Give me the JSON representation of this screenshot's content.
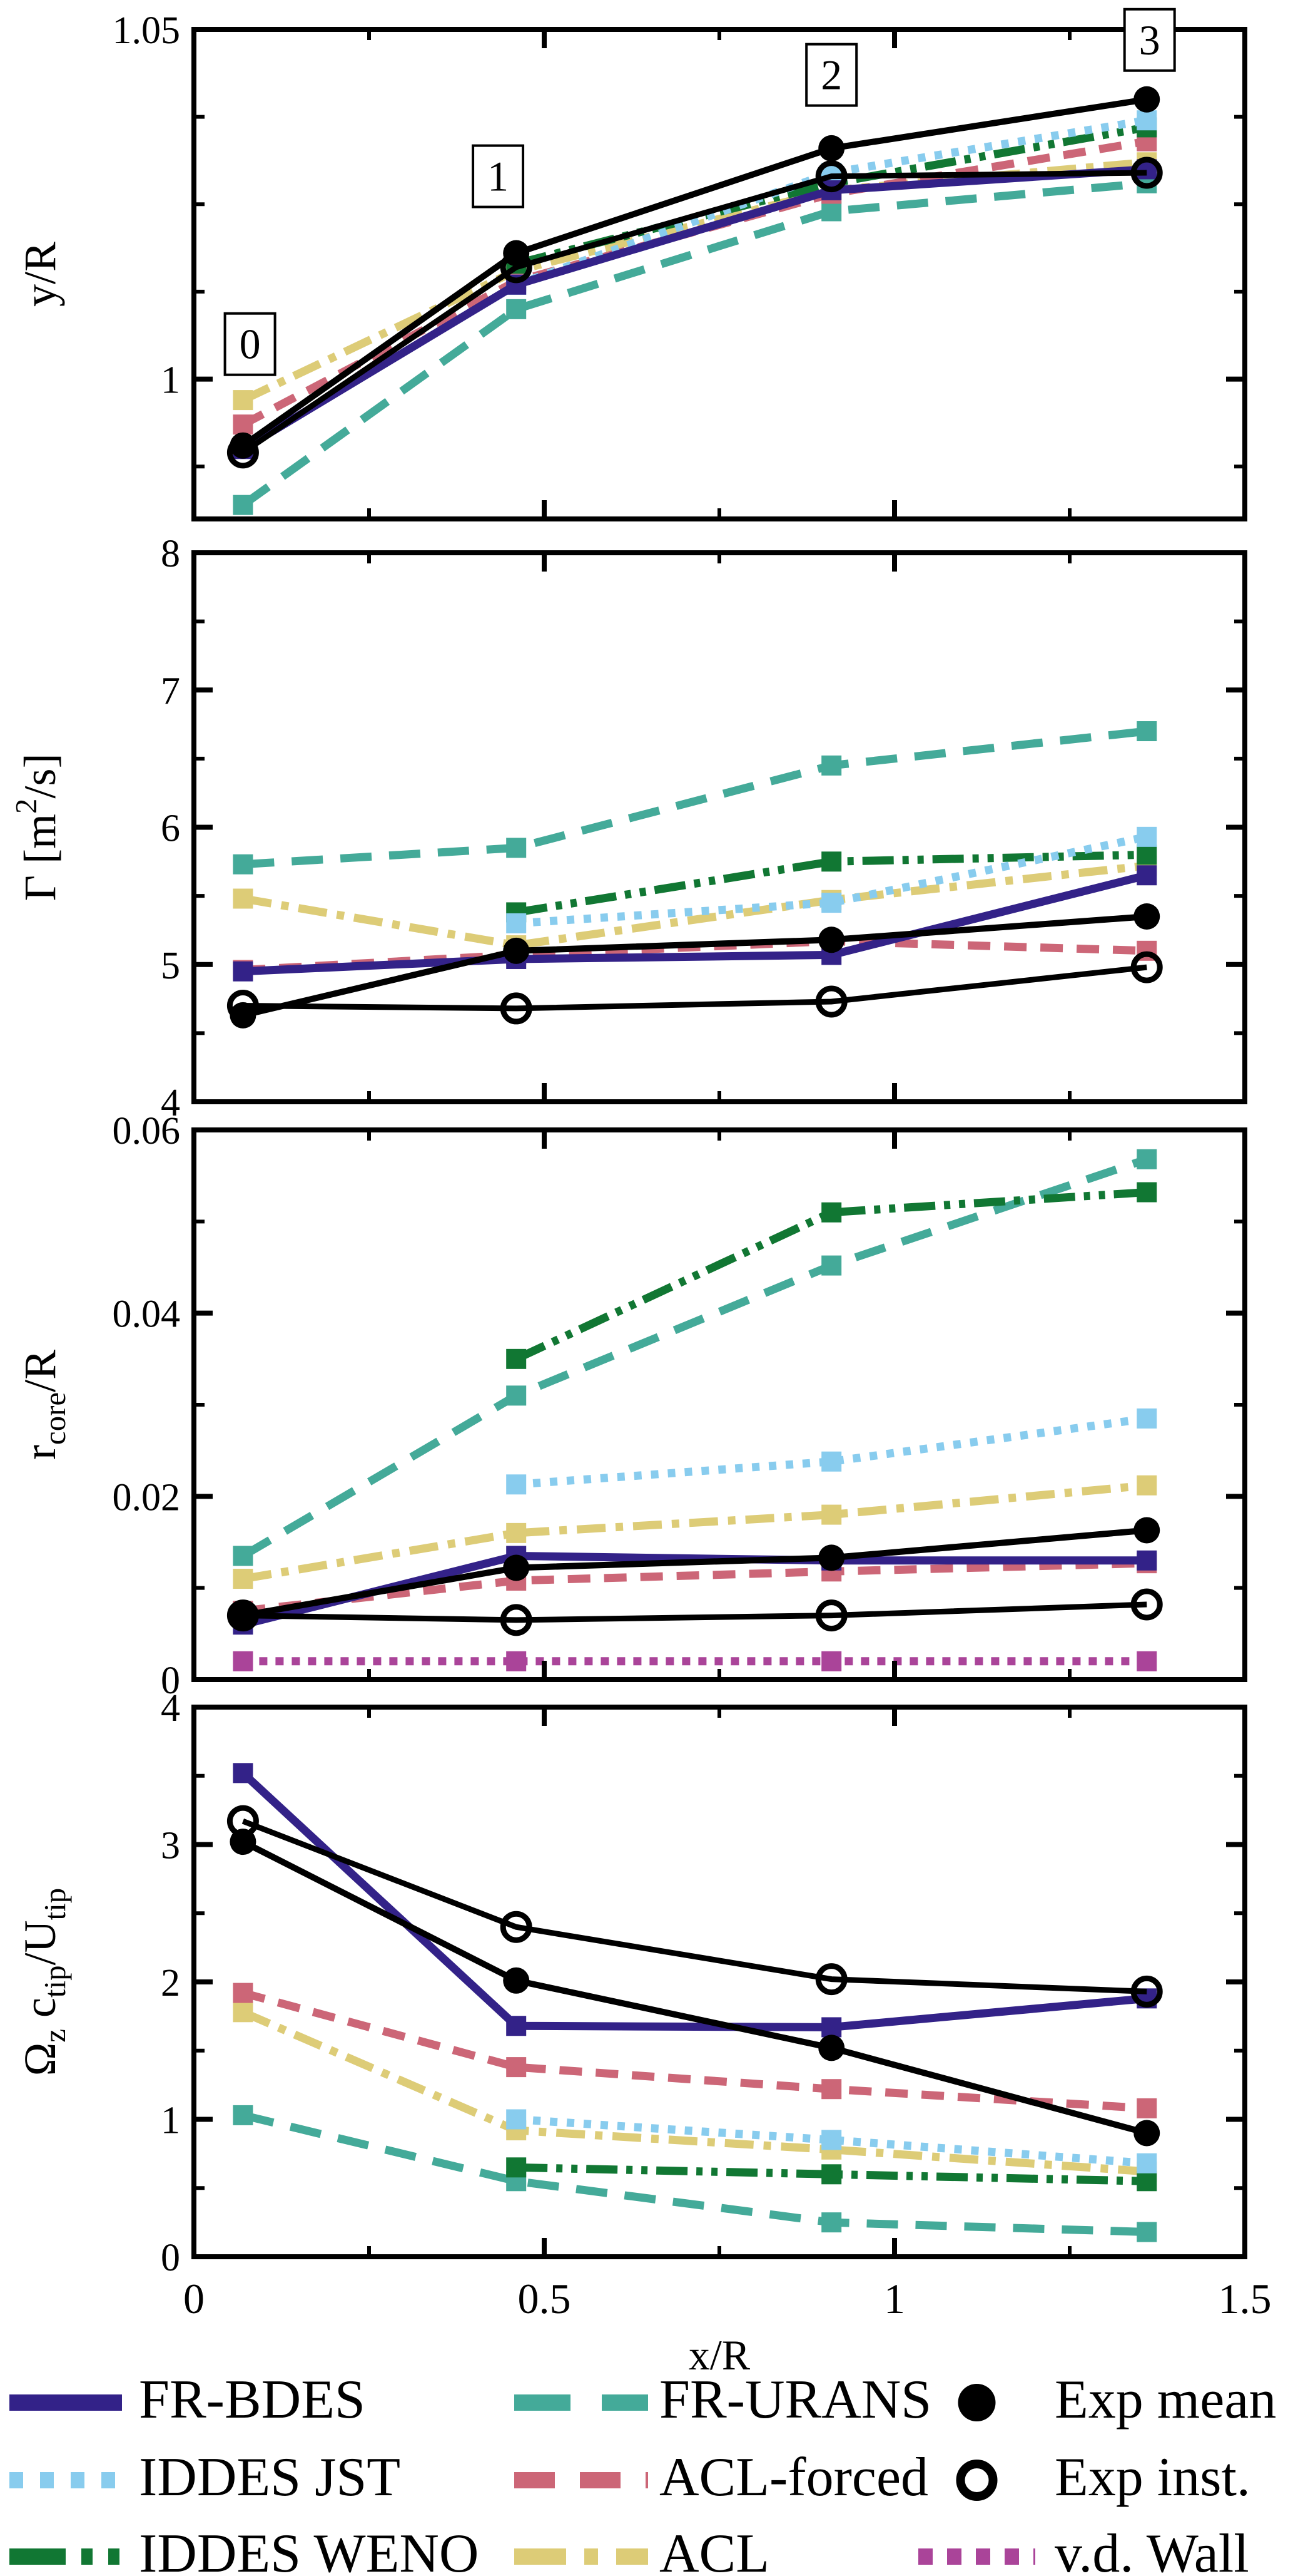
{
  "figure": {
    "background": "#ffffff",
    "xlabel": "x/R",
    "x_axis": {
      "range": [
        0,
        1.5
      ],
      "major_ticks": [
        0,
        0.5,
        1,
        1.5
      ],
      "major_labels": [
        "0",
        "0.5",
        "1",
        "1.5"
      ],
      "minor_ticks": [
        0.25,
        0.75,
        1.25
      ]
    }
  },
  "chart_data": {
    "type": "line",
    "x_stations": [
      0.07,
      0.46,
      0.91,
      1.36
    ],
    "panels": [
      {
        "id": "y-over-R",
        "ylabel_parts": [
          {
            "t": "y/R"
          }
        ],
        "ylim": [
          0.98,
          1.05
        ],
        "yticks": [
          {
            "v": 1,
            "label": "1"
          },
          {
            "v": 1.05,
            "label": "1.05"
          }
        ],
        "minor_yticks": [
          0.9875,
          1.0125,
          1.025,
          1.0375
        ],
        "annotations": [
          {
            "label": "0",
            "x": 0.08,
            "y": 1.005
          },
          {
            "label": "1",
            "x": 0.434,
            "y": 1.029
          },
          {
            "label": "2",
            "x": 0.91,
            "y": 1.0435
          },
          {
            "label": "3",
            "x": 1.364,
            "y": 1.0485
          }
        ]
      },
      {
        "id": "circulation",
        "ylabel_parts": [
          {
            "t": "Γ [m"
          },
          {
            "t": "2",
            "sup": true
          },
          {
            "t": "/s]"
          }
        ],
        "ylim": [
          4,
          8
        ],
        "yticks": [
          {
            "v": 4,
            "label": "4"
          },
          {
            "v": 5,
            "label": "5"
          },
          {
            "v": 6,
            "label": "6"
          },
          {
            "v": 7,
            "label": "7"
          },
          {
            "v": 8,
            "label": "8"
          }
        ],
        "minor_yticks": [
          4.5,
          5.5,
          6.5,
          7.5
        ],
        "annotations": []
      },
      {
        "id": "core-radius",
        "ylabel_parts": [
          {
            "t": "r"
          },
          {
            "t": "core",
            "sub": true
          },
          {
            "t": "/R"
          }
        ],
        "ylim": [
          0,
          0.06
        ],
        "yticks": [
          {
            "v": 0,
            "label": "0"
          },
          {
            "v": 0.02,
            "label": "0.02"
          },
          {
            "v": 0.04,
            "label": "0.04"
          },
          {
            "v": 0.06,
            "label": "0.06"
          }
        ],
        "minor_yticks": [
          0.01,
          0.03,
          0.05
        ],
        "annotations": []
      },
      {
        "id": "vorticity",
        "ylabel_parts": [
          {
            "t": "Ω"
          },
          {
            "t": "z",
            "sub": true
          },
          {
            "t": " c"
          },
          {
            "t": "tip",
            "sub": true
          },
          {
            "t": "/U"
          },
          {
            "t": "tip",
            "sub": true
          }
        ],
        "ylim": [
          0,
          4
        ],
        "yticks": [
          {
            "v": 0,
            "label": "0"
          },
          {
            "v": 1,
            "label": "1"
          },
          {
            "v": 2,
            "label": "2"
          },
          {
            "v": 3,
            "label": "3"
          },
          {
            "v": 4,
            "label": "4"
          }
        ],
        "minor_yticks": [
          0.5,
          1.5,
          2.5,
          3.5
        ],
        "annotations": []
      }
    ],
    "series": [
      {
        "id": "fr-urans",
        "label": "FR-URANS",
        "color": "#44AA99",
        "dash": "50 28",
        "lw": 13,
        "marker": "square",
        "values": {
          "y-over-R": [
            0.982,
            1.01,
            1.024,
            1.028
          ],
          "circulation": [
            5.73,
            5.85,
            6.45,
            6.7
          ],
          "core-radius": [
            0.0135,
            0.031,
            0.0452,
            0.0568
          ],
          "vorticity": [
            1.03,
            0.55,
            0.25,
            0.18
          ]
        }
      },
      {
        "id": "acl",
        "label": "ACL",
        "color": "#DDCC77",
        "dash": "46 16 12 16",
        "lw": 13,
        "marker": "square",
        "values": {
          "y-over-R": [
            0.997,
            1.0155,
            1.027,
            1.031
          ],
          "circulation": [
            5.48,
            5.14,
            5.47,
            5.72
          ],
          "core-radius": [
            0.011,
            0.016,
            0.018,
            0.0212
          ],
          "vorticity": [
            1.78,
            0.92,
            0.78,
            0.62
          ]
        }
      },
      {
        "id": "acl-forced",
        "label": "ACL-forced",
        "color": "#CC6677",
        "dash": "36 22",
        "lw": 13,
        "marker": "square",
        "values": {
          "y-over-R": [
            0.9935,
            1.014,
            1.0265,
            1.034
          ],
          "circulation": [
            4.96,
            5.07,
            5.17,
            5.1
          ],
          "core-radius": [
            0.0075,
            0.0108,
            0.0118,
            0.0127
          ],
          "vorticity": [
            1.92,
            1.38,
            1.22,
            1.08
          ]
        }
      },
      {
        "id": "iddes-weno",
        "label": "IDDES WENO",
        "color": "#117733",
        "dash": "50 14 10 14 10 14",
        "lw": 13,
        "marker": "square",
        "values": {
          "y-over-R": [
            null,
            1.0165,
            1.028,
            1.036
          ],
          "circulation": [
            null,
            5.38,
            5.75,
            5.8
          ],
          "core-radius": [
            null,
            0.035,
            0.051,
            0.0532
          ],
          "vorticity": [
            null,
            0.65,
            0.6,
            0.55
          ]
        }
      },
      {
        "id": "iddes-jst",
        "label": "IDDES JST",
        "color": "#88CCEE",
        "dash": "12 15",
        "lw": 13,
        "marker": "square",
        "values": {
          "y-over-R": [
            null,
            1.0135,
            1.0295,
            1.037
          ],
          "circulation": [
            null,
            5.3,
            5.45,
            5.93
          ],
          "core-radius": [
            null,
            0.0213,
            0.0238,
            0.0285
          ],
          "vorticity": [
            null,
            1.0,
            0.85,
            0.68
          ]
        }
      },
      {
        "id": "fr-bdes",
        "label": "FR-BDES",
        "color": "#332288",
        "dash": "",
        "lw": 13,
        "marker": "square",
        "values": {
          "y-over-R": [
            0.99,
            1.0135,
            1.027,
            1.03
          ],
          "circulation": [
            4.95,
            5.04,
            5.07,
            5.65
          ],
          "core-radius": [
            0.006,
            0.0135,
            0.013,
            0.013
          ],
          "vorticity": [
            3.52,
            1.68,
            1.67,
            1.88
          ]
        }
      },
      {
        "id": "vd-wall",
        "label": "v.d. Wall",
        "color": "#AA4499",
        "dash": "13 13",
        "lw": 13,
        "marker": "square",
        "values": {
          "core-radius": [
            0.002,
            0.002,
            0.002,
            0.002
          ]
        }
      },
      {
        "id": "exp-inst",
        "label": "Exp inst.",
        "color": "#000000",
        "dash": "",
        "lw": 9,
        "marker": "circle-open",
        "values": {
          "y-over-R": [
            0.9895,
            1.016,
            1.029,
            1.0295
          ],
          "circulation": [
            4.7,
            4.68,
            4.73,
            4.98
          ],
          "core-radius": [
            0.007,
            0.0065,
            0.007,
            0.0082
          ],
          "vorticity": [
            3.17,
            2.4,
            2.02,
            1.93
          ]
        }
      },
      {
        "id": "exp-mean",
        "label": "Exp mean",
        "color": "#000000",
        "dash": "",
        "lw": 10,
        "marker": "circle-filled",
        "values": {
          "y-over-R": [
            0.9905,
            1.018,
            1.033,
            1.04
          ],
          "circulation": [
            4.63,
            5.1,
            5.18,
            5.35
          ],
          "core-radius": [
            0.007,
            0.0122,
            0.0133,
            0.0163
          ],
          "vorticity": [
            3.02,
            2.01,
            1.52,
            0.9
          ]
        }
      }
    ]
  },
  "legend": {
    "columns": [
      {
        "entries": [
          {
            "series": "fr-bdes",
            "label": "FR-BDES",
            "kind": "line"
          },
          {
            "series": "iddes-jst",
            "label": "IDDES JST",
            "kind": "line"
          },
          {
            "series": "iddes-weno",
            "label": "IDDES WENO",
            "kind": "line"
          }
        ]
      },
      {
        "entries": [
          {
            "series": "fr-urans",
            "label": "FR-URANS",
            "kind": "line"
          },
          {
            "series": "acl-forced",
            "label": "ACL-forced",
            "kind": "line"
          },
          {
            "series": "acl",
            "label": "ACL",
            "kind": "line"
          }
        ]
      },
      {
        "entries": [
          {
            "series": "exp-mean",
            "label": "Exp mean",
            "kind": "marker-filled"
          },
          {
            "series": "exp-inst",
            "label": "Exp inst.",
            "kind": "marker-open"
          },
          {
            "series": "vd-wall",
            "label": "v.d. Wall",
            "kind": "line"
          }
        ]
      }
    ]
  }
}
